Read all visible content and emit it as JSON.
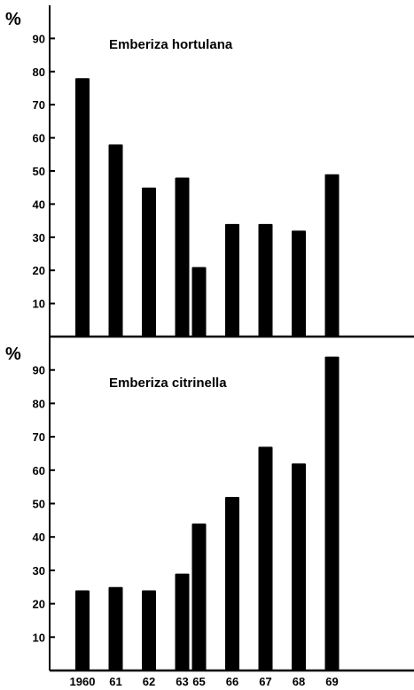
{
  "chart_data": [
    {
      "type": "bar",
      "title": "Emberiza hortulana",
      "ylabel": "%",
      "xlabel": "",
      "ylim": [
        0,
        100
      ],
      "yticks": [
        "10",
        "20",
        "30",
        "40",
        "50",
        "60",
        "70",
        "80",
        "90"
      ],
      "years": [
        1960,
        1961,
        1962,
        1963,
        1965,
        1966,
        1967,
        1968,
        1969
      ],
      "values": [
        78,
        58,
        45,
        48,
        21,
        34,
        34,
        32,
        49
      ],
      "grid": false,
      "bar_color": "#000000"
    },
    {
      "type": "bar",
      "title": "Emberiza citrinella",
      "ylabel": "%",
      "xlabel": "",
      "ylim": [
        0,
        100
      ],
      "yticks": [
        "10",
        "20",
        "30",
        "40",
        "50",
        "60",
        "70",
        "80",
        "90"
      ],
      "years": [
        1960,
        1961,
        1962,
        1963,
        1965,
        1966,
        1967,
        1968,
        1969
      ],
      "categories": [
        "1960",
        "61",
        "62",
        "63",
        "65",
        "66",
        "67",
        "68",
        "69"
      ],
      "values": [
        24,
        25,
        24,
        29,
        44,
        52,
        67,
        62,
        94
      ],
      "grid": false,
      "bar_color": "#000000"
    }
  ]
}
